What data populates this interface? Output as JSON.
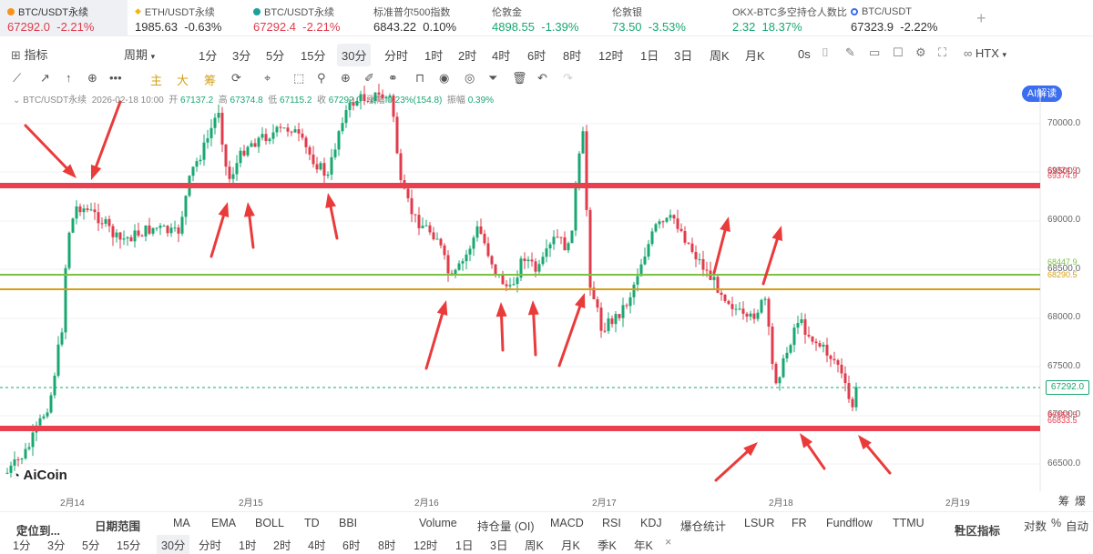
{
  "tickers": [
    {
      "name": "BTC/USDT永续",
      "price": "67292.0",
      "change": "-2.21%",
      "color": "#e03c4c",
      "dot": "#f7931a",
      "active": true
    },
    {
      "name": "ETH/USDT永续",
      "price": "1985.63",
      "change": "-0.63%",
      "color": "#333333",
      "dot": "#f0b90b"
    },
    {
      "name": "BTC/USDT永续",
      "price": "67292.4",
      "change": "-2.21%",
      "color": "#e03c4c",
      "dot": "#1aa19a"
    },
    {
      "name": "标准普尔500指数",
      "price": "6843.22",
      "change": "0.10%",
      "color": "#333333",
      "dot": ""
    },
    {
      "name": "伦敦金",
      "price": "4898.55",
      "change": "-1.39%",
      "color": "#19a772",
      "dot": ""
    },
    {
      "name": "伦敦银",
      "price": "73.50",
      "change": "-3.53%",
      "color": "#19a772",
      "dot": ""
    },
    {
      "name": "OKX-BTC多空持仓人数比",
      "price": "2.32",
      "change": "18.37%",
      "color": "#19a772",
      "dot": ""
    },
    {
      "name": "BTC/USDT",
      "price": "67323.9",
      "change": "-2.22%",
      "color": "#333333",
      "dot": "#3b6df0"
    }
  ],
  "toolbar": {
    "indicator": "指标",
    "period": "周期",
    "periods": [
      "1分",
      "3分",
      "5分",
      "15分",
      "30分",
      "分时",
      "1时",
      "2时",
      "4时",
      "6时",
      "8时",
      "12时",
      "1日",
      "3日",
      "周K",
      "月K"
    ],
    "selected_period": "30分",
    "zero_s": "0s",
    "exchange": "HTX",
    "ai": "AI解读"
  },
  "drawtools": {
    "main": "主",
    "big": "大",
    "chip": "筹"
  },
  "info": {
    "label": "BTC/USDT永续",
    "date": "2026-02-18 10:00",
    "open_label": "开",
    "open": "67137.2",
    "high_label": "高",
    "high": "67374.8",
    "low_label": "低",
    "low": "67115.2",
    "close_label": "收",
    "close": "67292.0",
    "change_label": "涨幅",
    "change": "0.23%(154.8)",
    "amp_label": "振幅",
    "amp": "0.39%"
  },
  "price_axis": [
    "70000.0",
    "69500.0",
    "69000.0",
    "68500.0",
    "68000.0",
    "67500.0",
    "67000.0",
    "66500.0"
  ],
  "current_price": "67292.0",
  "levels": {
    "red_top": "69324.9",
    "red_top2": "69374.9",
    "green": "68447.9",
    "yellow": "68290.5",
    "red_bottom": "66863.5",
    "red_bottom2": "66833.5"
  },
  "dates": [
    "2月14",
    "2月15",
    "2月16",
    "2月17",
    "2月18",
    "2月19"
  ],
  "brand": "AiCoin",
  "corner": {
    "a": "筹",
    "b": "爆"
  },
  "bottom_indicators": {
    "locate": "定位到...",
    "range": "日期范围",
    "items": [
      "MA",
      "EMA",
      "BOLL",
      "TD",
      "BBI",
      "Volume",
      "持仓量 (OI)",
      "MACD",
      "RSI",
      "KDJ",
      "爆仓统计",
      "LSUR",
      "FR",
      "Fundflow",
      "TTMU"
    ],
    "community": "社区指标",
    "log": "对数",
    "pct": "%",
    "auto": "自动"
  },
  "bottom_periods": {
    "items": [
      "1分",
      "3分",
      "5分",
      "15分",
      "30分",
      "分时",
      "1时",
      "2时",
      "4时",
      "6时",
      "8时",
      "12时",
      "1日",
      "3日",
      "周K",
      "月K",
      "季K",
      "年K"
    ],
    "selected": "30分",
    "close": "×"
  },
  "colors": {
    "up": "#19a772",
    "down": "#e03c4c",
    "level_red": "#e8404f",
    "level_green": "#7dc242",
    "level_yellow": "#d4a017",
    "arrow": "#ea3b3b"
  }
}
